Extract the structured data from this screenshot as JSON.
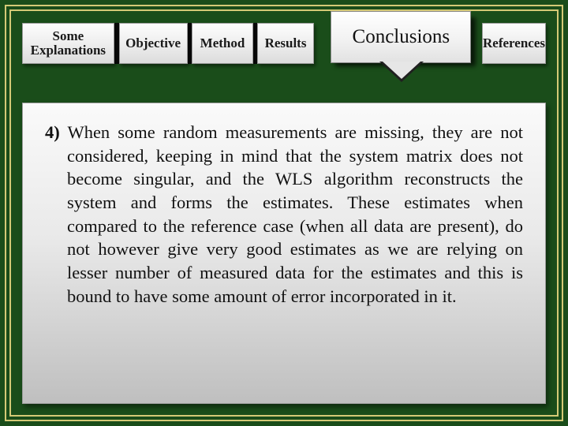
{
  "colors": {
    "page_bg": "#1a4d1a",
    "frame_border": "#d4c976",
    "tab_bg_top": "#fdfdfd",
    "tab_bg_bottom": "#dcdcdc",
    "tab_border": "#9a9a9a",
    "tab_separator": "#0a0a0a",
    "active_tab_bg_top": "#ffffff",
    "active_tab_bg_bottom": "#e2e2e2",
    "panel_bg_top": "#fafafa",
    "panel_bg_bottom": "#bfbfbf",
    "text_color": "#111111",
    "shadow": "rgba(0,0,0,0.45)"
  },
  "typography": {
    "font_family": "Times New Roman",
    "tab_fontsize_pt": 13,
    "active_tab_fontsize_pt": 19,
    "body_fontsize_pt": 17,
    "tab_weight": "bold",
    "active_tab_weight": "normal"
  },
  "tabs": {
    "explanations_line1": "Some",
    "explanations_line2": "Explanations",
    "objective": "Objective",
    "method": "Method",
    "results": "Results",
    "conclusions": "Conclusions",
    "references": "References",
    "active_index": 4
  },
  "body": {
    "item_number": "4)",
    "text": "When some random measurements are missing, they are not considered, keeping in mind that the system matrix does not become singular, and the WLS algorithm reconstructs the system and forms the estimates. These estimates when compared to the reference case (when all data are present), do not however give very good estimates as we are relying on lesser number of measured data for the estimates and this is bound to have some amount of error incorporated in it."
  }
}
